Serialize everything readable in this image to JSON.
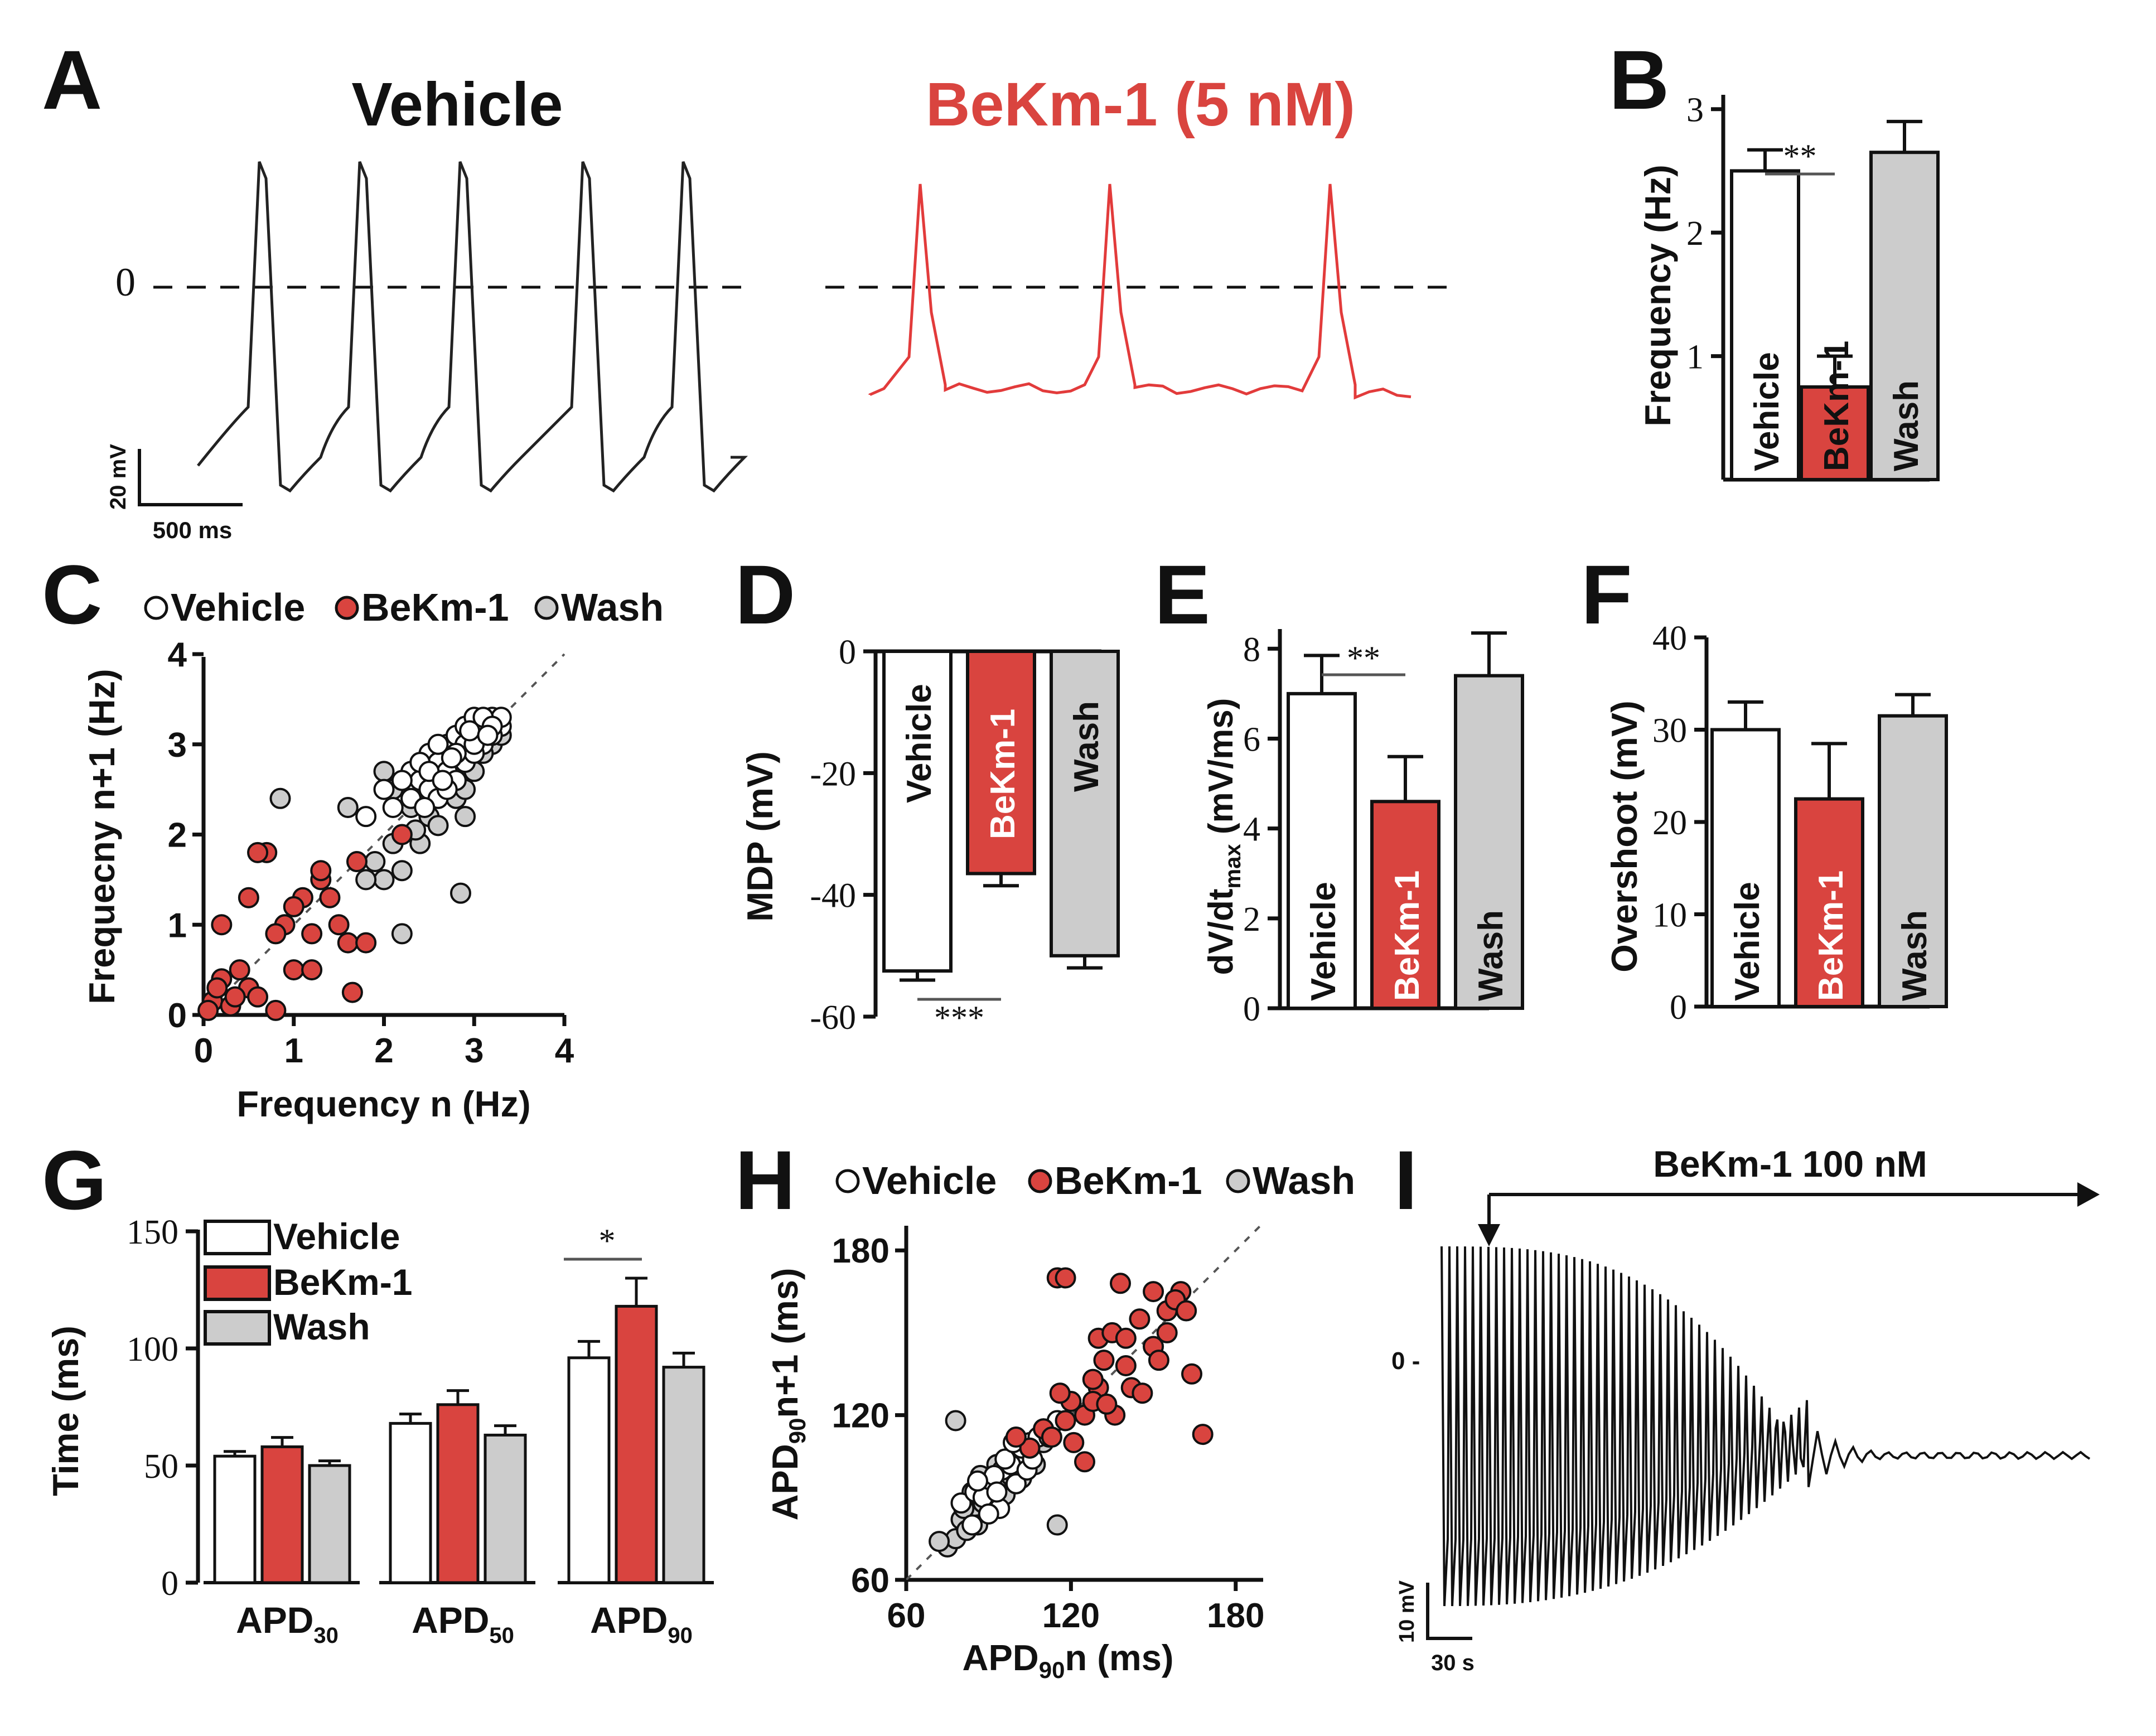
{
  "colors": {
    "vehicle": "#ffffff",
    "bekm": "#d9443f",
    "wash": "#cccccc",
    "ink": "#111111",
    "red_trace": "#e23b3b"
  },
  "panels": {
    "A": "A",
    "B": "B",
    "C": "C",
    "D": "D",
    "E": "E",
    "F": "F",
    "G": "G",
    "H": "H",
    "I": "I"
  },
  "panel_a": {
    "vehicle_title": "Vehicle",
    "bekm_title": "BeKm-1 (5 nM)",
    "zero_label": "0",
    "scale_mv": "20 mV",
    "scale_ms": "500 ms"
  },
  "legend_cd": {
    "vehicle": "Vehicle",
    "bekm": "BeKm-1",
    "wash": "Wash"
  },
  "panel_i": {
    "drug_label": "BeKm-1 100 nM",
    "zero_label": "0 -",
    "scale_mv": "10 mV",
    "scale_s": "30 s"
  },
  "chart_data": [
    {
      "panel": "B",
      "type": "bar",
      "ylabel": "Frequency (Hz)",
      "yticks": [
        1,
        2,
        3
      ],
      "ylim": [
        0,
        3.5
      ],
      "categories": [
        "Vehicle",
        "BeKm-1",
        "Wash"
      ],
      "values": [
        2.5,
        0.75,
        2.65
      ],
      "errors": [
        0.17,
        0.25,
        0.25
      ],
      "significance": "**"
    },
    {
      "panel": "C",
      "type": "scatter",
      "xlabel": "Frequency n (Hz)",
      "ylabel": "Frequecny n+1 (Hz)",
      "xlim": [
        0,
        4
      ],
      "ylim": [
        0,
        4
      ],
      "xticks": [
        0,
        1,
        2,
        3,
        4
      ],
      "yticks": [
        0,
        1,
        2,
        3,
        4
      ],
      "series": [
        {
          "name": "Vehicle",
          "points": [
            [
              2.3,
              2.7
            ],
            [
              2.4,
              2.6
            ],
            [
              2.5,
              2.9
            ],
            [
              2.6,
              2.8
            ],
            [
              2.7,
              3.0
            ],
            [
              2.8,
              3.1
            ],
            [
              2.9,
              3.2
            ],
            [
              3.0,
              3.1
            ],
            [
              3.1,
              3.2
            ],
            [
              3.2,
              3.3
            ],
            [
              3.3,
              3.2
            ],
            [
              3.0,
              3.3
            ],
            [
              2.7,
              2.7
            ],
            [
              2.9,
              2.8
            ],
            [
              3.1,
              3.0
            ],
            [
              2.5,
              2.5
            ],
            [
              2.6,
              2.4
            ],
            [
              2.8,
              2.6
            ],
            [
              3.2,
              3.1
            ],
            [
              3.3,
              3.3
            ],
            [
              2.4,
              2.8
            ],
            [
              2.2,
              2.6
            ],
            [
              2.9,
              3.0
            ],
            [
              3.0,
              2.9
            ],
            [
              2.7,
              2.5
            ],
            [
              2.0,
              2.5
            ],
            [
              1.8,
              2.2
            ],
            [
              2.5,
              2.7
            ],
            [
              2.6,
              3.0
            ],
            [
              2.8,
              2.9
            ],
            [
              3.1,
              3.3
            ],
            [
              3.2,
              3.2
            ],
            [
              3.0,
              3.0
            ],
            [
              2.3,
              2.4
            ],
            [
              2.1,
              2.3
            ],
            [
              2.65,
              2.6
            ],
            [
              2.75,
              2.85
            ],
            [
              2.95,
              3.15
            ],
            [
              3.15,
              3.1
            ],
            [
              2.45,
              2.3
            ]
          ]
        },
        {
          "name": "BeKm-1",
          "points": [
            [
              0.1,
              0.15
            ],
            [
              0.2,
              0.4
            ],
            [
              0.3,
              0.1
            ],
            [
              0.5,
              0.3
            ],
            [
              0.4,
              0.5
            ],
            [
              0.15,
              0.3
            ],
            [
              0.6,
              0.2
            ],
            [
              0.8,
              0.05
            ],
            [
              1.0,
              0.5
            ],
            [
              1.2,
              0.5
            ],
            [
              0.9,
              1.0
            ],
            [
              1.1,
              1.3
            ],
            [
              1.3,
              1.5
            ],
            [
              1.5,
              1.0
            ],
            [
              1.6,
              0.8
            ],
            [
              1.8,
              0.8
            ],
            [
              1.7,
              1.7
            ],
            [
              0.7,
              1.8
            ],
            [
              0.5,
              1.3
            ],
            [
              0.6,
              1.8
            ],
            [
              0.2,
              1.0
            ],
            [
              1.0,
              1.2
            ],
            [
              1.2,
              0.9
            ],
            [
              1.4,
              1.3
            ],
            [
              1.65,
              0.25
            ],
            [
              2.2,
              2.0
            ],
            [
              1.3,
              1.6
            ],
            [
              0.8,
              0.9
            ],
            [
              0.35,
              0.2
            ],
            [
              0.05,
              0.05
            ]
          ]
        },
        {
          "name": "Wash",
          "points": [
            [
              2.0,
              2.7
            ],
            [
              2.1,
              2.5
            ],
            [
              2.3,
              2.3
            ],
            [
              2.5,
              2.2
            ],
            [
              2.6,
              2.1
            ],
            [
              2.4,
              1.9
            ],
            [
              2.2,
              1.6
            ],
            [
              2.0,
              1.5
            ],
            [
              1.8,
              1.5
            ],
            [
              1.6,
              2.3
            ],
            [
              2.8,
              2.4
            ],
            [
              2.9,
              2.2
            ],
            [
              2.7,
              2.6
            ],
            [
              3.0,
              2.7
            ],
            [
              3.2,
              3.0
            ],
            [
              3.1,
              2.9
            ],
            [
              3.3,
              3.1
            ],
            [
              2.1,
              1.9
            ],
            [
              1.9,
              1.7
            ],
            [
              2.85,
              1.35
            ],
            [
              0.85,
              2.4
            ],
            [
              2.2,
              0.9
            ],
            [
              2.9,
              2.5
            ],
            [
              2.55,
              2.45
            ],
            [
              2.35,
              2.05
            ]
          ]
        }
      ]
    },
    {
      "panel": "D",
      "type": "bar",
      "ylabel": "MDP (mV)",
      "yticks": [
        0,
        -20,
        -40,
        -60
      ],
      "ylim": [
        -60,
        0
      ],
      "categories": [
        "Vehicle",
        "BeKm-1",
        "Wash"
      ],
      "values": [
        -52.5,
        -36.5,
        -50.0
      ],
      "errors": [
        1.5,
        2.0,
        2.0
      ],
      "significance": "***"
    },
    {
      "panel": "E",
      "type": "bar",
      "ylabel": "dV/dt",
      "ylabel_sub": "max",
      "ylabel_unit": " (mV/ms)",
      "yticks": [
        0,
        2,
        4,
        6,
        8
      ],
      "ylim": [
        0,
        8.5
      ],
      "categories": [
        "Vehicle",
        "BeKm-1",
        "Wash"
      ],
      "values": [
        7.0,
        4.6,
        7.4
      ],
      "errors": [
        0.85,
        1.0,
        0.95
      ],
      "significance": "**"
    },
    {
      "panel": "F",
      "type": "bar",
      "ylabel": "Overshoot (mV)",
      "yticks": [
        0,
        10,
        20,
        30,
        40
      ],
      "ylim": [
        0,
        40
      ],
      "categories": [
        "Vehicle",
        "BeKm-1",
        "Wash"
      ],
      "values": [
        30.0,
        22.5,
        31.5
      ],
      "errors": [
        3.0,
        6.0,
        2.3
      ]
    },
    {
      "panel": "G",
      "type": "bar",
      "ylabel": "Time (ms)",
      "yticks": [
        0,
        50,
        100,
        150
      ],
      "ylim": [
        0,
        150
      ],
      "categories": [
        {
          "main": "APD",
          "sub": "30"
        },
        {
          "main": "APD",
          "sub": "50"
        },
        {
          "main": "APD",
          "sub": "90"
        }
      ],
      "series": [
        {
          "name": "Vehicle",
          "values": [
            54,
            68,
            96
          ],
          "errors": [
            2,
            4,
            7
          ]
        },
        {
          "name": "BeKm-1",
          "values": [
            58,
            76,
            118
          ],
          "errors": [
            4,
            6,
            12
          ]
        },
        {
          "name": "Wash",
          "values": [
            50,
            63,
            92
          ],
          "errors": [
            2,
            4,
            6
          ]
        }
      ],
      "significance": "*"
    },
    {
      "panel": "H",
      "type": "scatter",
      "xlabel": "APD",
      "xlabel_sub": "90",
      "xlabel_unit": "n (ms)",
      "ylabel": "APD",
      "ylabel_sub": "90",
      "ylabel_unit": "n+1 (ms)",
      "xlim": [
        60,
        190
      ],
      "ylim": [
        60,
        190
      ],
      "xticks": [
        60,
        120,
        180
      ],
      "yticks": [
        60,
        120,
        180
      ],
      "series": [
        {
          "name": "Vehicle",
          "points": [
            [
              80,
              88
            ],
            [
              85,
              92
            ],
            [
              90,
              95
            ],
            [
              95,
              100
            ],
            [
              100,
              105
            ],
            [
              105,
              110
            ],
            [
              88,
              90
            ],
            [
              92,
              98
            ],
            [
              98,
              102
            ],
            [
              102,
              108
            ],
            [
              108,
              112
            ],
            [
              110,
              115
            ],
            [
              84,
              80
            ],
            [
              94,
              86
            ],
            [
              100,
              95
            ],
            [
              104,
              100
            ],
            [
              112,
              112
            ],
            [
              115,
              118
            ],
            [
              96,
              104
            ],
            [
              90,
              84
            ],
            [
              86,
              96
            ],
            [
              106,
              104
            ],
            [
              99,
              110
            ],
            [
              93,
              92
            ]
          ]
        },
        {
          "name": "BeKm-1",
          "points": [
            [
              115,
              170
            ],
            [
              118,
              170
            ],
            [
              130,
              148
            ],
            [
              132,
              140
            ],
            [
              135,
              150
            ],
            [
              140,
              148
            ],
            [
              145,
              155
            ],
            [
              150,
              145
            ],
            [
              155,
              158
            ],
            [
              160,
              165
            ],
            [
              158,
              162
            ],
            [
              162,
              158
            ],
            [
              164,
              135
            ],
            [
              168,
              113
            ],
            [
              130,
              130
            ],
            [
              125,
              120
            ],
            [
              120,
              125
            ],
            [
              118,
              118
            ],
            [
              110,
              115
            ],
            [
              105,
              108
            ],
            [
              100,
              112
            ],
            [
              125,
              103
            ],
            [
              150,
              165
            ],
            [
              152,
              140
            ],
            [
              140,
              138
            ],
            [
              142,
              130
            ],
            [
              128,
              133
            ],
            [
              136,
              120
            ],
            [
              146,
              128
            ],
            [
              155,
              150
            ],
            [
              128,
              125
            ],
            [
              113,
              112
            ],
            [
              138,
              168
            ],
            [
              133,
              124
            ],
            [
              121,
              110
            ],
            [
              116,
              128
            ]
          ]
        },
        {
          "name": "Wash",
          "points": [
            [
              75,
              72
            ],
            [
              78,
              75
            ],
            [
              80,
              82
            ],
            [
              82,
              78
            ],
            [
              85,
              85
            ],
            [
              88,
              88
            ],
            [
              90,
              92
            ],
            [
              95,
              95
            ],
            [
              78,
              118
            ],
            [
              115,
              80
            ],
            [
              100,
              102
            ],
            [
              105,
              108
            ],
            [
              110,
              110
            ],
            [
              92,
              86
            ],
            [
              98,
              98
            ],
            [
              84,
              92
            ],
            [
              72,
              74
            ],
            [
              86,
              80
            ],
            [
              96,
              91
            ],
            [
              102,
              97
            ],
            [
              87,
              98
            ],
            [
              107,
              102
            ],
            [
              93,
              102
            ],
            [
              81,
              86
            ]
          ]
        }
      ]
    }
  ]
}
